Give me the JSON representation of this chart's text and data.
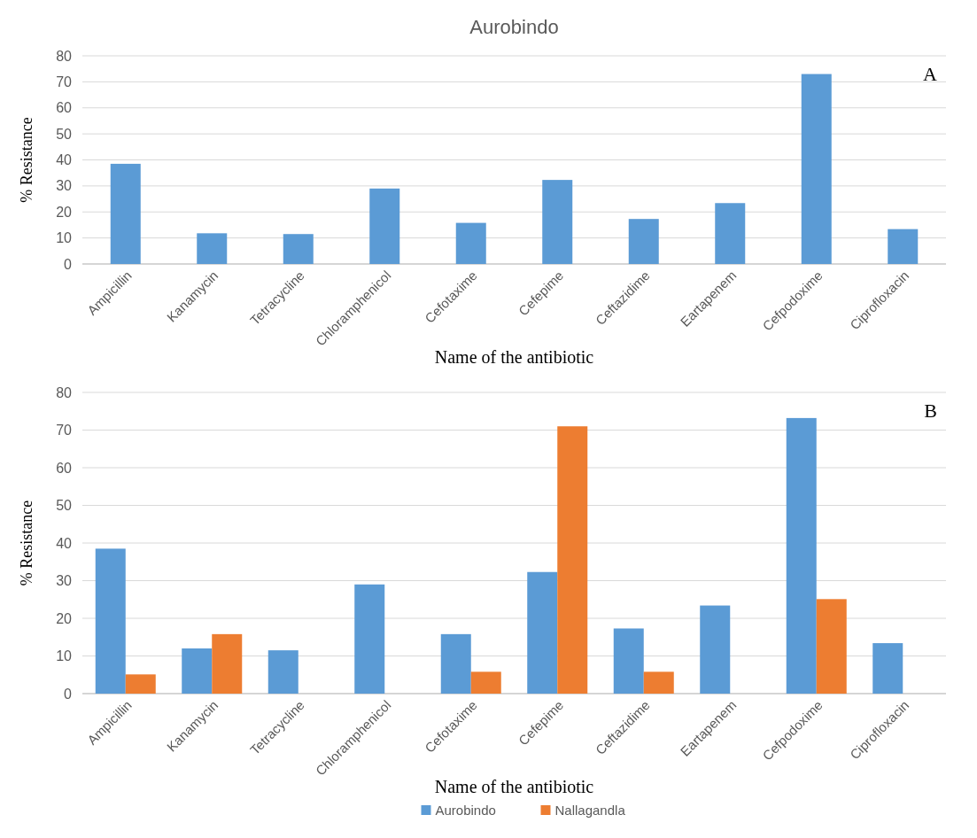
{
  "chart_data": [
    {
      "type": "bar",
      "title": "Aurobindo",
      "xlabel": "Name of the antibiotic",
      "ylabel": "% Resistance",
      "annotations": [
        "A"
      ],
      "grid": "y",
      "ylim": [
        0,
        80
      ],
      "yticks": [
        0,
        10,
        20,
        30,
        40,
        50,
        60,
        70,
        80
      ],
      "categories": [
        "Ampicillin",
        "Kanamycin",
        "Tetracycline",
        "Chloramphenicol",
        "Cefotaxime",
        "Cefepime",
        "Ceftazidime",
        "Eartapenem",
        "Cefpodoxime",
        "Ciprofloxacin"
      ],
      "series": [
        {
          "color": "#5b9bd5",
          "values": [
            38.5,
            11.8,
            11.5,
            29,
            15.8,
            32.3,
            17.3,
            23.4,
            73,
            13.4
          ]
        }
      ]
    },
    {
      "type": "bar",
      "xlabel": "Name of the antibiotic",
      "ylabel": "% Resistance",
      "annotations": [
        "B"
      ],
      "grid": "y",
      "legend": "bottom",
      "ylim": [
        0,
        80
      ],
      "yticks": [
        0,
        10,
        20,
        30,
        40,
        50,
        60,
        70,
        80
      ],
      "categories": [
        "Ampicillin",
        "Kanamycin",
        "Tetracycline",
        "Chloramphenicol",
        "Cefotaxime",
        "Cefepime",
        "Ceftazidime",
        "Eartapenem",
        "Cefpodoxime",
        "Ciprofloxacin"
      ],
      "series": [
        {
          "name": "Aurobindo",
          "color": "#5b9bd5",
          "values": [
            38.5,
            12,
            11.5,
            29,
            15.8,
            32.3,
            17.3,
            23.4,
            73.2,
            13.4
          ]
        },
        {
          "name": "Nallagandla",
          "color": "#ed7d31",
          "values": [
            5.1,
            15.8,
            0,
            0,
            5.8,
            71,
            5.8,
            0,
            25.1,
            0
          ]
        }
      ]
    }
  ]
}
